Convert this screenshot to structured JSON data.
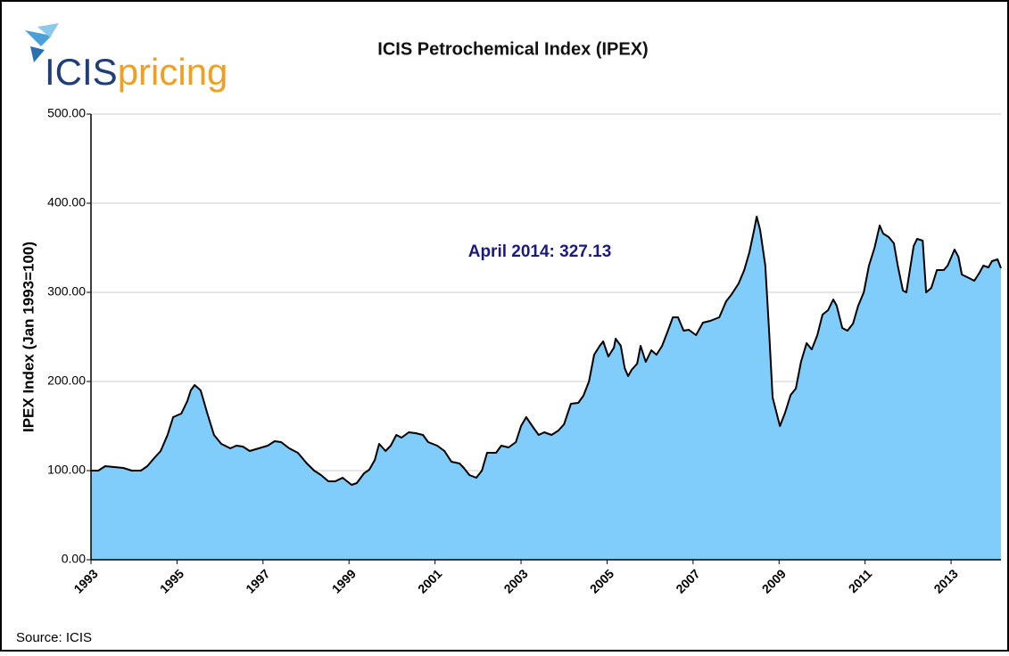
{
  "chart_data": {
    "type": "area",
    "title": "ICIS Petrochemical Index (IPEX)",
    "logo": {
      "brand": "ICIS",
      "product": "pricing"
    },
    "y_label": "IPEX Index (Jan 1993=100)",
    "annotation": "April 2014: 327.13",
    "source": "Source: ICIS",
    "color": "#80ccfa",
    "line_color": "#000000",
    "grid": true,
    "xlim": [
      1993,
      2014.16
    ],
    "xticks": [
      1993,
      1995,
      1997,
      1999,
      2001,
      2003,
      2005,
      2007,
      2009,
      2011,
      2013
    ],
    "ylim": [
      0,
      500
    ],
    "yticks": [
      {
        "value": 0,
        "label": "0.00"
      },
      {
        "value": 100,
        "label": "100.00"
      },
      {
        "value": 200,
        "label": "200.00"
      },
      {
        "value": 300,
        "label": "300.00"
      },
      {
        "value": 400,
        "label": "400.00"
      },
      {
        "value": 500,
        "label": "500.00"
      }
    ],
    "x": [
      1993.0,
      1993.17,
      1993.33,
      1993.54,
      1993.75,
      1993.95,
      1994.16,
      1994.31,
      1994.45,
      1994.62,
      1994.78,
      1994.91,
      1995.1,
      1995.24,
      1995.32,
      1995.41,
      1995.55,
      1995.7,
      1995.86,
      1996.03,
      1996.24,
      1996.38,
      1996.53,
      1996.69,
      1996.9,
      1997.11,
      1997.27,
      1997.42,
      1997.61,
      1997.81,
      1998.02,
      1998.19,
      1998.35,
      1998.52,
      1998.68,
      1998.85,
      1999.06,
      1999.18,
      1999.35,
      1999.47,
      1999.6,
      1999.7,
      1999.85,
      1999.97,
      2000.1,
      2000.22,
      2000.39,
      2000.55,
      2000.72,
      2000.84,
      2001.05,
      2001.22,
      2001.38,
      2001.57,
      2001.67,
      2001.8,
      2001.96,
      2002.09,
      2002.21,
      2002.42,
      2002.54,
      2002.71,
      2002.88,
      2003.0,
      2003.12,
      2003.29,
      2003.41,
      2003.54,
      2003.71,
      2003.87,
      2004.0,
      2004.16,
      2004.33,
      2004.45,
      2004.58,
      2004.7,
      2004.83,
      2004.91,
      2005.03,
      2005.16,
      2005.2,
      2005.32,
      2005.41,
      2005.49,
      2005.57,
      2005.7,
      2005.78,
      2005.9,
      2006.03,
      2006.15,
      2006.28,
      2006.4,
      2006.53,
      2006.65,
      2006.78,
      2006.9,
      2007.07,
      2007.23,
      2007.4,
      2007.61,
      2007.77,
      2007.9,
      2008.06,
      2008.19,
      2008.31,
      2008.42,
      2008.48,
      2008.56,
      2008.68,
      2008.77,
      2008.85,
      2009.02,
      2009.14,
      2009.27,
      2009.39,
      2009.51,
      2009.64,
      2009.76,
      2009.89,
      2010.01,
      2010.14,
      2010.26,
      2010.34,
      2010.47,
      2010.59,
      2010.72,
      2010.84,
      2010.97,
      2011.09,
      2011.22,
      2011.34,
      2011.42,
      2011.55,
      2011.67,
      2011.76,
      2011.88,
      2011.96,
      2012.13,
      2012.21,
      2012.34,
      2012.42,
      2012.54,
      2012.67,
      2012.83,
      2012.92,
      2013.08,
      2013.17,
      2013.25,
      2013.42,
      2013.54,
      2013.66,
      2013.75,
      2013.87,
      2013.95,
      2014.08,
      2014.16
    ],
    "values": [
      100,
      100,
      105,
      104,
      103,
      100,
      100,
      105,
      113,
      122,
      140,
      160,
      164,
      178,
      190,
      196,
      190,
      165,
      140,
      130,
      125,
      128,
      127,
      122,
      125,
      128,
      133,
      132,
      125,
      120,
      108,
      100,
      95,
      88,
      88,
      92,
      84,
      86,
      97,
      101,
      112,
      130,
      122,
      128,
      140,
      137,
      143,
      142,
      140,
      132,
      128,
      122,
      110,
      108,
      103,
      95,
      92,
      100,
      120,
      120,
      128,
      126,
      132,
      150,
      160,
      148,
      140,
      143,
      140,
      145,
      152,
      175,
      176,
      184,
      200,
      230,
      240,
      245,
      228,
      238,
      248,
      240,
      215,
      206,
      213,
      220,
      240,
      222,
      235,
      230,
      240,
      255,
      272,
      272,
      257,
      258,
      252,
      266,
      268,
      272,
      290,
      298,
      310,
      325,
      345,
      370,
      385,
      370,
      330,
      255,
      182,
      150,
      165,
      185,
      192,
      222,
      243,
      236,
      252,
      275,
      280,
      292,
      285,
      260,
      257,
      265,
      285,
      300,
      330,
      350,
      375,
      366,
      362,
      355,
      330,
      302,
      300,
      352,
      360,
      358,
      300,
      305,
      325,
      325,
      330,
      348,
      340,
      320,
      316,
      313,
      322,
      330,
      328,
      335,
      337,
      327.13
    ]
  }
}
